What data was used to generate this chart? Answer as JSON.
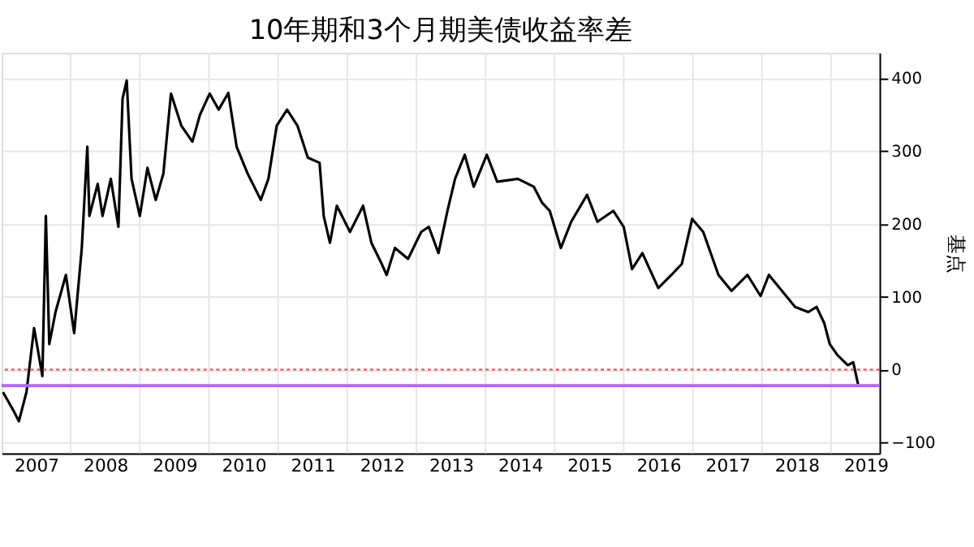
{
  "chart_data": {
    "type": "line",
    "title": "10年期和3个月期美债收益率差",
    "ylabel": "基点",
    "x": [
      2007.02,
      2007.17,
      2007.25,
      2007.36,
      2007.47,
      2007.59,
      2007.64,
      2007.69,
      2007.78,
      2007.93,
      2008.05,
      2008.16,
      2008.24,
      2008.27,
      2008.39,
      2008.46,
      2008.58,
      2008.69,
      2008.75,
      2008.81,
      2008.88,
      2009.0,
      2009.11,
      2009.23,
      2009.34,
      2009.45,
      2009.6,
      2009.76,
      2009.87,
      2010.01,
      2010.14,
      2010.28,
      2010.4,
      2010.56,
      2010.75,
      2010.86,
      2010.98,
      2011.13,
      2011.28,
      2011.43,
      2011.6,
      2011.66,
      2011.75,
      2011.85,
      2012.04,
      2012.23,
      2012.35,
      2012.5,
      2012.57,
      2012.69,
      2012.88,
      2013.07,
      2013.18,
      2013.32,
      2013.45,
      2013.56,
      2013.7,
      2013.83,
      2014.02,
      2014.17,
      2014.47,
      2014.7,
      2014.82,
      2014.93,
      2015.09,
      2015.24,
      2015.47,
      2015.62,
      2015.85,
      2016.0,
      2016.12,
      2016.27,
      2016.5,
      2016.69,
      2016.84,
      2016.99,
      2017.15,
      2017.37,
      2017.56,
      2017.79,
      2017.98,
      2018.1,
      2018.29,
      2018.48,
      2018.67,
      2018.79,
      2018.9,
      2018.98,
      2019.09,
      2019.24,
      2019.32,
      2019.39
    ],
    "series": [
      {
        "color": "#000000",
        "values": [
          -31,
          -56,
          -71,
          -31,
          57,
          -9,
          211,
          35,
          79,
          130,
          50,
          167,
          306,
          211,
          255,
          211,
          262,
          196,
          372,
          397,
          262,
          211,
          277,
          233,
          269,
          379,
          335,
          313,
          350,
          379,
          357,
          380,
          306,
          269,
          233,
          262,
          335,
          357,
          335,
          291,
          284,
          211,
          174,
          225,
          189,
          225,
          174,
          145,
          130,
          167,
          152,
          189,
          196,
          160,
          218,
          262,
          295,
          251,
          295,
          258,
          262,
          251,
          229,
          218,
          167,
          203,
          240,
          203,
          218,
          196,
          138,
          160,
          112,
          130,
          145,
          207,
          189,
          130,
          108,
          130,
          101,
          130,
          108,
          86,
          79,
          86,
          64,
          35,
          20,
          6,
          10,
          -20
        ]
      }
    ],
    "xlim": [
      2007.0,
      2019.7
    ],
    "xticks": [
      {
        "value": 2007.5,
        "label": "2007"
      },
      {
        "value": 2008,
        "label": null
      },
      {
        "value": 2008.5,
        "label": "2008"
      },
      {
        "value": 2009,
        "label": null
      },
      {
        "value": 2009.5,
        "label": "2009"
      },
      {
        "value": 2010,
        "label": null
      },
      {
        "value": 2010.5,
        "label": "2010"
      },
      {
        "value": 2011,
        "label": null
      },
      {
        "value": 2011.5,
        "label": "2011"
      },
      {
        "value": 2012,
        "label": null
      },
      {
        "value": 2012.5,
        "label": "2012"
      },
      {
        "value": 2013,
        "label": null
      },
      {
        "value": 2013.5,
        "label": "2013"
      },
      {
        "value": 2014,
        "label": null
      },
      {
        "value": 2014.5,
        "label": "2014"
      },
      {
        "value": 2015,
        "label": null
      },
      {
        "value": 2015.5,
        "label": "2015"
      },
      {
        "value": 2016,
        "label": null
      },
      {
        "value": 2016.5,
        "label": "2016"
      },
      {
        "value": 2017,
        "label": null
      },
      {
        "value": 2017.5,
        "label": "2017"
      },
      {
        "value": 2018,
        "label": null
      },
      {
        "value": 2018.5,
        "label": "2018"
      },
      {
        "value": 2019,
        "label": null
      },
      {
        "value": 2019.5,
        "label": "2019"
      }
    ],
    "ylim": [
      -115,
      435
    ],
    "yticks": [
      -100,
      0,
      100,
      200,
      300,
      400
    ],
    "grid": true,
    "ref_lines": [
      {
        "axis": "y",
        "value": 0,
        "color": "#ff4d4d",
        "line_style": "dotted"
      },
      {
        "axis": "y",
        "value": -22,
        "color": "#b266ff",
        "line_style": "solid"
      }
    ]
  }
}
